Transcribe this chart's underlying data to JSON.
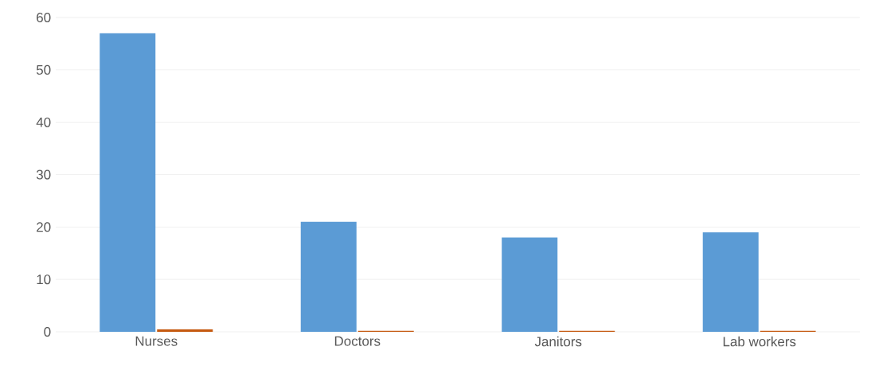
{
  "chart_data": {
    "type": "bar",
    "categories": [
      "Nurses",
      "Doctors",
      "Janitors",
      "Lab workers"
    ],
    "series": [
      {
        "color": "#5b9bd5",
        "values": [
          57,
          21,
          18,
          19
        ]
      },
      {
        "color": "#c55a11",
        "values": [
          0.5,
          0.2,
          0.2,
          0.2
        ]
      }
    ],
    "ylim": [
      0,
      60
    ],
    "yticks": [
      0,
      10,
      20,
      30,
      40,
      50,
      60
    ],
    "grid": "y"
  }
}
